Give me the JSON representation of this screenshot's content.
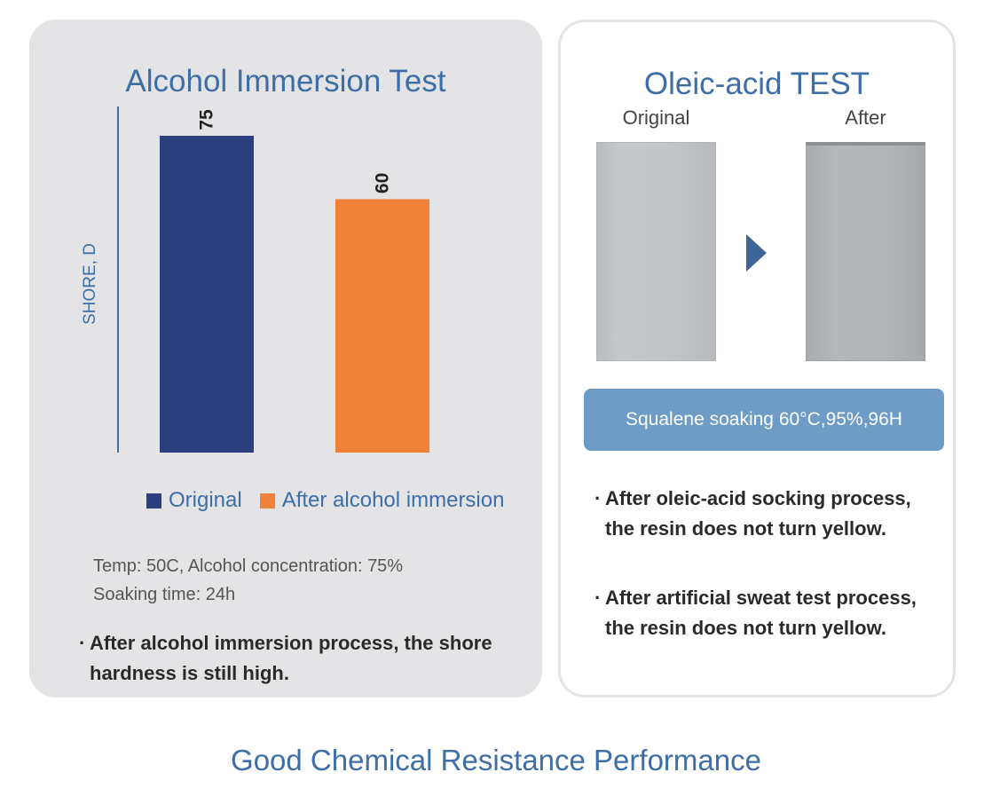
{
  "left_panel": {
    "title": "Alcohol Immersion Test",
    "conditions": {
      "line1": "Temp: 50C, Alcohol concentration: 75%",
      "line2": "Soaking time: 24h"
    },
    "bullet": {
      "dot": "·",
      "text": "After alcohol immersion process, the shore hardness is still high."
    }
  },
  "chart_data": {
    "type": "bar",
    "title": "Alcohol Immersion Test",
    "ylabel": "SHORE, D",
    "xlabel": "",
    "ylim": [
      0,
      90
    ],
    "series": [
      {
        "name": "Original",
        "value": 75,
        "label": "75",
        "color": "#2b3f7e"
      },
      {
        "name": "After alcohol immersion",
        "value": 60,
        "label": "60",
        "color": "#ee8239"
      }
    ],
    "grid": false,
    "legend": "bottom"
  },
  "right_panel": {
    "title": "Oleic-acid TEST",
    "label_original": "Original",
    "label_after": "After",
    "arrow_icon": "play-arrow-icon",
    "condition": "Squalene soaking 60°C,95%,96H",
    "bullets": [
      {
        "dot": "·",
        "text": "After oleic-acid socking process, the resin does not turn yellow."
      },
      {
        "dot": "·",
        "text": "After artificial sweat test process, the resin does not turn yellow."
      }
    ]
  },
  "footer": {
    "title": "Good Chemical Resistance Performance"
  }
}
